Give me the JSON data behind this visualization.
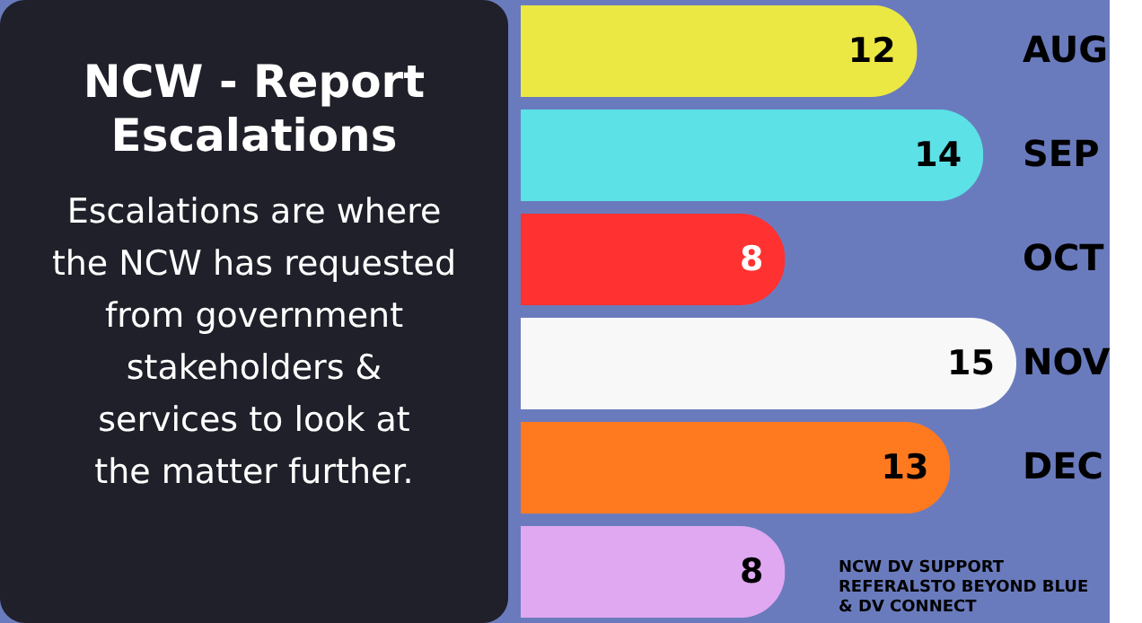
{
  "chart_data": [
    {
      "type": "other",
      "title": "NCW - Report Escalations",
      "annotations": [
        "Escalations are where the NCW has requested from government stakeholders & services to look at the matter further."
      ]
    },
    {
      "type": "bar",
      "orientation": "horizontal",
      "categories": [
        "AUG",
        "SEP",
        "OCT",
        "NOV",
        "DEC",
        null
      ],
      "values": [
        12,
        14,
        8,
        15,
        13,
        8
      ],
      "colors": [
        "#ece843",
        "#5ce1e6",
        "#ff3131",
        "#f8f8f8",
        "#ff7a1f",
        "#e0a8f0"
      ],
      "data_labels": true,
      "tick_labels": "y",
      "annotations": [
        "NCW DV SUPPORT REFERALSTO BEYOND BLUE & DV CONNECT"
      ]
    }
  ]
}
